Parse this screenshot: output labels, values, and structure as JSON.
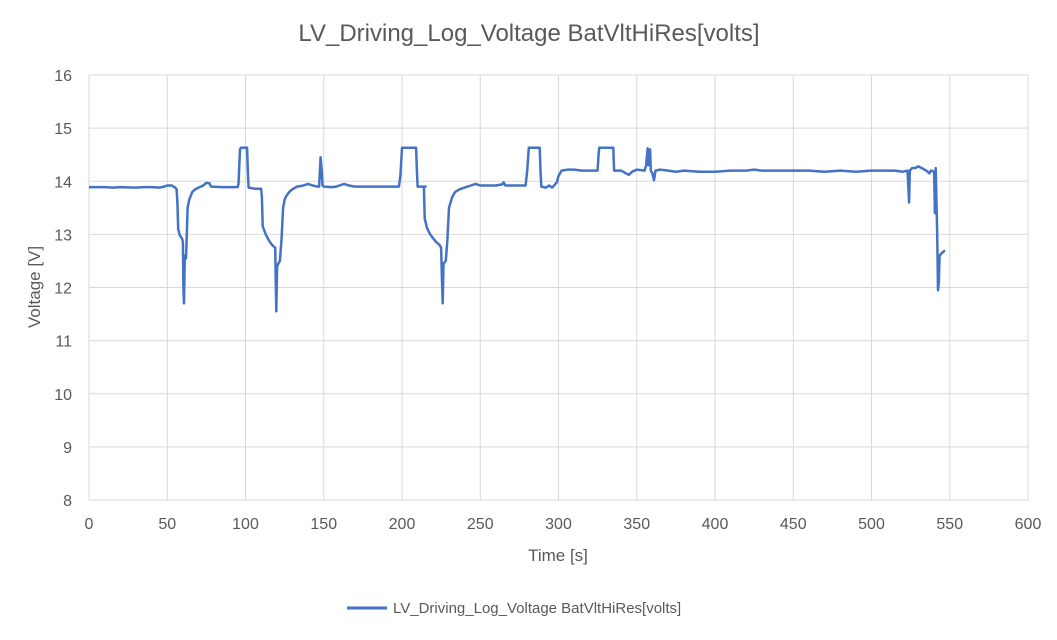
{
  "chart_data": {
    "type": "line",
    "title": "LV_Driving_Log_Voltage BatVltHiRes[volts]",
    "xlabel": "Time [s]",
    "ylabel": "Voltage [V]",
    "xlim": [
      0,
      600
    ],
    "ylim": [
      8,
      16
    ],
    "x_ticks": [
      "0",
      "50",
      "100",
      "150",
      "200",
      "250",
      "300",
      "350",
      "400",
      "450",
      "500",
      "550",
      "600"
    ],
    "y_ticks": [
      "8",
      "9",
      "10",
      "11",
      "12",
      "13",
      "14",
      "15",
      "16"
    ],
    "grid": true,
    "legend_position": "bottom",
    "colors": {
      "series": "#4472C4",
      "grid": "#D9D9D9",
      "text": "#595959"
    },
    "series": [
      {
        "name": "LV_Driving_Log_Voltage BatVltHiRes[volts]",
        "points": [
          [
            0,
            13.89
          ],
          [
            10,
            13.89
          ],
          [
            15,
            13.88
          ],
          [
            20,
            13.89
          ],
          [
            30,
            13.88
          ],
          [
            35,
            13.89
          ],
          [
            40,
            13.89
          ],
          [
            45,
            13.88
          ],
          [
            48,
            13.9
          ],
          [
            50,
            13.92
          ],
          [
            53,
            13.92
          ],
          [
            55,
            13.88
          ],
          [
            56,
            13.85
          ],
          [
            56.5,
            13.6
          ],
          [
            57,
            13.1
          ],
          [
            58,
            12.98
          ],
          [
            59.5,
            12.92
          ],
          [
            60,
            12.85
          ],
          [
            60.3,
            12.0
          ],
          [
            60.7,
            11.7
          ],
          [
            61.2,
            12.6
          ],
          [
            62,
            12.55
          ],
          [
            62.5,
            13.0
          ],
          [
            63,
            13.5
          ],
          [
            64,
            13.65
          ],
          [
            66,
            13.8
          ],
          [
            68,
            13.85
          ],
          [
            70,
            13.88
          ],
          [
            73,
            13.92
          ],
          [
            75,
            13.97
          ],
          [
            77,
            13.96
          ],
          [
            78,
            13.9
          ],
          [
            85,
            13.89
          ],
          [
            90,
            13.89
          ],
          [
            95,
            13.89
          ],
          [
            95.5,
            13.95
          ],
          [
            96.5,
            14.6
          ],
          [
            97,
            14.63
          ],
          [
            101,
            14.63
          ],
          [
            101.5,
            14.2
          ],
          [
            102,
            13.88
          ],
          [
            106,
            13.86
          ],
          [
            110,
            13.86
          ],
          [
            110.5,
            13.7
          ],
          [
            111,
            13.15
          ],
          [
            113,
            13.0
          ],
          [
            115,
            12.88
          ],
          [
            117,
            12.8
          ],
          [
            119,
            12.75
          ],
          [
            119.3,
            12.2
          ],
          [
            119.7,
            11.55
          ],
          [
            120.2,
            12.4
          ],
          [
            121,
            12.45
          ],
          [
            122,
            12.5
          ],
          [
            123,
            12.9
          ],
          [
            124,
            13.5
          ],
          [
            125,
            13.65
          ],
          [
            126,
            13.72
          ],
          [
            128,
            13.8
          ],
          [
            130,
            13.85
          ],
          [
            133,
            13.9
          ],
          [
            137,
            13.92
          ],
          [
            140,
            13.95
          ],
          [
            143,
            13.92
          ],
          [
            146,
            13.9
          ],
          [
            147,
            13.9
          ],
          [
            148,
            14.45
          ],
          [
            148.7,
            14.2
          ],
          [
            149.2,
            13.92
          ],
          [
            150,
            13.9
          ],
          [
            155,
            13.89
          ],
          [
            158,
            13.9
          ],
          [
            160,
            13.92
          ],
          [
            163,
            13.95
          ],
          [
            166,
            13.92
          ],
          [
            170,
            13.9
          ],
          [
            180,
            13.9
          ],
          [
            190,
            13.9
          ],
          [
            198,
            13.9
          ],
          [
            199,
            14.1
          ],
          [
            200,
            14.63
          ],
          [
            209,
            14.63
          ],
          [
            209.5,
            14.2
          ],
          [
            210,
            13.9
          ],
          [
            215,
            13.9
          ],
          [
            214,
            13.9
          ],
          [
            214.5,
            13.3
          ],
          [
            216,
            13.12
          ],
          [
            218,
            13.0
          ],
          [
            220,
            12.92
          ],
          [
            222,
            12.85
          ],
          [
            224,
            12.8
          ],
          [
            225,
            12.75
          ],
          [
            225.5,
            12.2
          ],
          [
            226,
            11.7
          ],
          [
            226.5,
            12.45
          ],
          [
            228,
            12.5
          ],
          [
            229,
            12.9
          ],
          [
            230,
            13.5
          ],
          [
            232,
            13.7
          ],
          [
            234,
            13.8
          ],
          [
            237,
            13.85
          ],
          [
            240,
            13.88
          ],
          [
            244,
            13.92
          ],
          [
            247,
            13.95
          ],
          [
            250,
            13.92
          ],
          [
            260,
            13.92
          ],
          [
            264,
            13.94
          ],
          [
            265,
            13.98
          ],
          [
            266,
            13.92
          ],
          [
            270,
            13.92
          ],
          [
            279,
            13.92
          ],
          [
            280,
            14.2
          ],
          [
            281,
            14.63
          ],
          [
            288,
            14.63
          ],
          [
            288.5,
            14.2
          ],
          [
            289,
            13.9
          ],
          [
            292,
            13.88
          ],
          [
            294,
            13.92
          ],
          [
            296,
            13.88
          ],
          [
            298,
            13.95
          ],
          [
            299,
            13.98
          ],
          [
            300,
            14.1
          ],
          [
            302,
            14.2
          ],
          [
            306,
            14.22
          ],
          [
            310,
            14.22
          ],
          [
            315,
            14.2
          ],
          [
            320,
            14.2
          ],
          [
            325,
            14.2
          ],
          [
            325.5,
            14.45
          ],
          [
            326,
            14.63
          ],
          [
            335,
            14.63
          ],
          [
            335.5,
            14.2
          ],
          [
            340,
            14.2
          ],
          [
            343,
            14.15
          ],
          [
            345,
            14.12
          ],
          [
            347,
            14.18
          ],
          [
            350,
            14.22
          ],
          [
            355,
            14.2
          ],
          [
            356,
            14.3
          ],
          [
            357,
            14.62
          ],
          [
            357.5,
            14.3
          ],
          [
            358.5,
            14.6
          ],
          [
            359,
            14.2
          ],
          [
            360,
            14.15
          ],
          [
            361,
            14.02
          ],
          [
            362,
            14.2
          ],
          [
            365,
            14.22
          ],
          [
            370,
            14.2
          ],
          [
            375,
            14.18
          ],
          [
            380,
            14.2
          ],
          [
            390,
            14.18
          ],
          [
            400,
            14.18
          ],
          [
            410,
            14.2
          ],
          [
            420,
            14.2
          ],
          [
            425,
            14.22
          ],
          [
            430,
            14.2
          ],
          [
            440,
            14.2
          ],
          [
            450,
            14.2
          ],
          [
            460,
            14.2
          ],
          [
            470,
            14.18
          ],
          [
            480,
            14.2
          ],
          [
            490,
            14.18
          ],
          [
            500,
            14.2
          ],
          [
            510,
            14.2
          ],
          [
            515,
            14.2
          ],
          [
            520,
            14.18
          ],
          [
            523,
            14.2
          ],
          [
            524,
            13.6
          ],
          [
            524.5,
            14.2
          ],
          [
            526,
            14.25
          ],
          [
            528,
            14.25
          ],
          [
            530,
            14.28
          ],
          [
            532,
            14.25
          ],
          [
            535,
            14.2
          ],
          [
            537,
            14.15
          ],
          [
            538,
            14.2
          ],
          [
            540,
            14.18
          ],
          [
            540.5,
            13.4
          ],
          [
            541,
            14.25
          ],
          [
            542,
            13.0
          ],
          [
            542.5,
            11.95
          ],
          [
            543,
            12.1
          ],
          [
            543.5,
            12.6
          ],
          [
            545,
            12.65
          ],
          [
            547,
            12.7
          ]
        ]
      }
    ]
  }
}
